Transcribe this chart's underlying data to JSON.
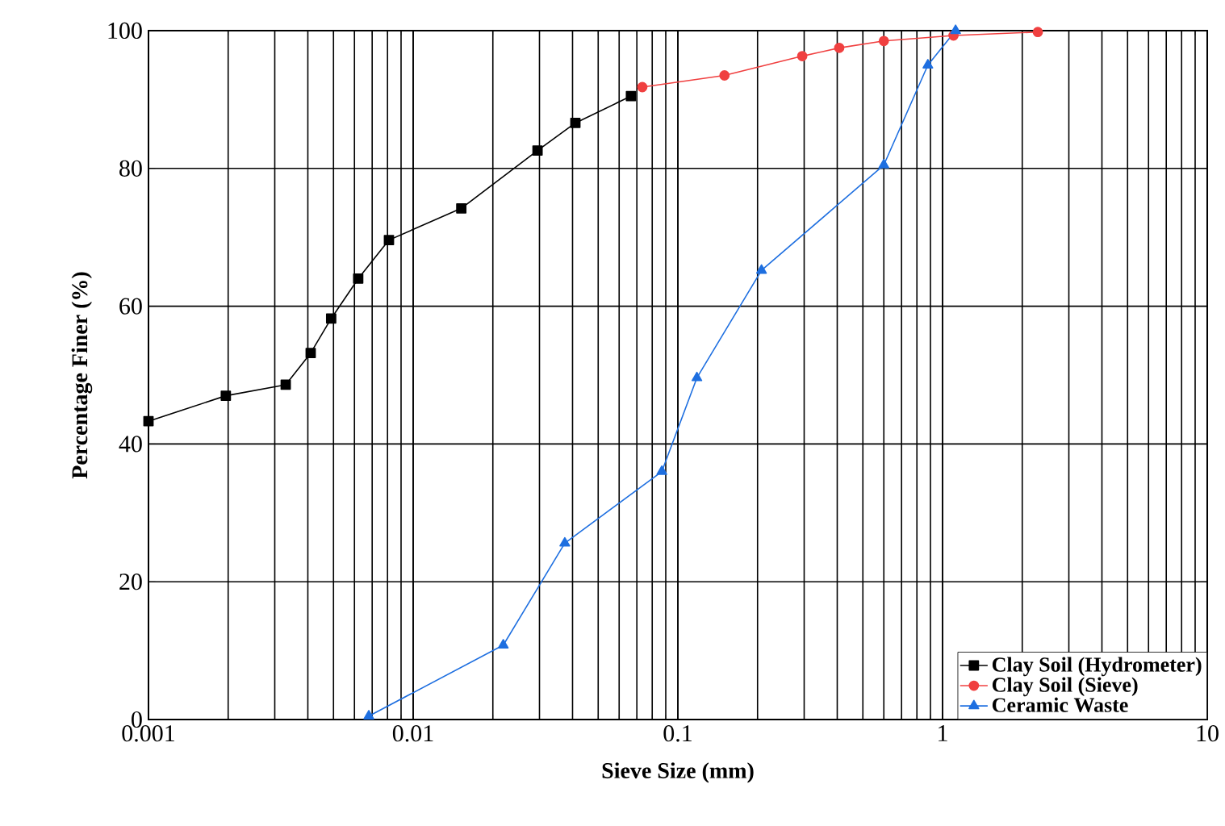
{
  "chart_data": {
    "type": "line",
    "xlabel": "Sieve Size (mm)",
    "ylabel": "Percentage Finer (%)",
    "log": "x",
    "xlim": [
      0.001,
      10
    ],
    "xticks": [
      0.001,
      0.01,
      0.1,
      1,
      10
    ],
    "ylim": [
      0,
      100
    ],
    "yticks": [
      0,
      20,
      40,
      60,
      80,
      100
    ],
    "grid": true,
    "legend": "bottom right",
    "series": [
      {
        "name": "Clay Soil (Hydrometer)",
        "color": "#000000",
        "marker": "square",
        "x": [
          0.001,
          0.00196,
          0.0033,
          0.0041,
          0.0049,
          0.0062,
          0.0081,
          0.0152,
          0.0295,
          0.041,
          0.0665
        ],
        "values": [
          43.3,
          47,
          48.6,
          53.2,
          58.2,
          64,
          69.6,
          74.2,
          82.6,
          86.6,
          90.5
        ]
      },
      {
        "name": "Clay Soil (Sieve)",
        "color": "#f04040",
        "marker": "circle",
        "x": [
          0.0734,
          0.15,
          0.295,
          0.407,
          0.6,
          1.1,
          2.29
        ],
        "values": [
          91.8,
          93.5,
          96.3,
          97.5,
          98.5,
          99.3,
          99.8
        ]
      },
      {
        "name": "Ceramic Waste",
        "color": "#1e6fe0",
        "marker": "triangle",
        "x": [
          0.0068,
          0.0219,
          0.0374,
          0.087,
          0.118,
          0.207,
          0.6,
          0.88,
          1.12
        ],
        "values": [
          0.5,
          10.8,
          25.6,
          36,
          49.6,
          65.2,
          80.5,
          95,
          100
        ]
      }
    ]
  }
}
